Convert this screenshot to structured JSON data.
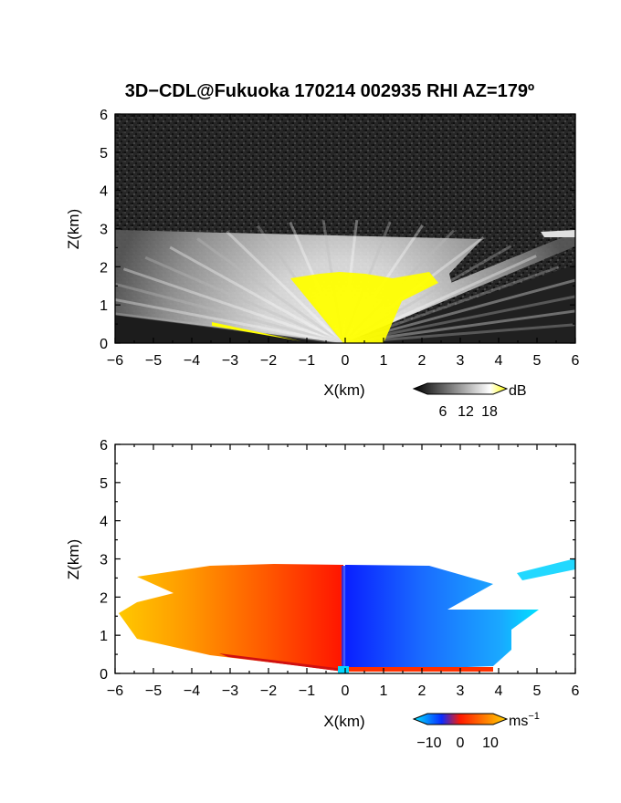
{
  "title": "3D−CDL@Fukuoka 170214 002935 RHI AZ=179º",
  "chart_data": [
    {
      "type": "heatmap",
      "name": "snr-panel",
      "xlabel": "X(km)",
      "ylabel": "Z(km)",
      "xlim": [
        -6,
        6
      ],
      "ylim": [
        0,
        6
      ],
      "xticks": [
        "−6",
        "−5",
        "−4",
        "−3",
        "−2",
        "−1",
        "0",
        "1",
        "2",
        "3",
        "4",
        "5",
        "6"
      ],
      "yticks": [
        "0",
        "1",
        "2",
        "3",
        "4",
        "5",
        "6"
      ],
      "colorbar": {
        "unit": "dB",
        "ticks": [
          "6",
          "12",
          "18"
        ],
        "range": [
          0,
          20
        ],
        "colors": [
          "#000000",
          "#ffffff",
          "#ffff00"
        ]
      },
      "description_values": {
        "echo_top_km": 2.8,
        "scan_center_x_km": 0
      }
    },
    {
      "type": "heatmap",
      "name": "velocity-panel",
      "xlabel": "X(km)",
      "ylabel": "Z(km)",
      "xlim": [
        -6,
        6
      ],
      "ylim": [
        0,
        6
      ],
      "xticks": [
        "−6",
        "−5",
        "−4",
        "−3",
        "−2",
        "−1",
        "0",
        "1",
        "2",
        "3",
        "4",
        "5",
        "6"
      ],
      "yticks": [
        "0",
        "1",
        "2",
        "3",
        "4",
        "5",
        "6"
      ],
      "colorbar": {
        "unit": "ms",
        "unit_sup": "−1",
        "ticks": [
          "−10",
          "0",
          "10"
        ],
        "range": [
          -15,
          15
        ],
        "colors": [
          "#00e5ff",
          "#0a2cff",
          "#ff1a00",
          "#ffd200"
        ]
      },
      "description_values": {
        "echo_top_km": 2.8,
        "scan_center_x_km": 0
      }
    }
  ]
}
